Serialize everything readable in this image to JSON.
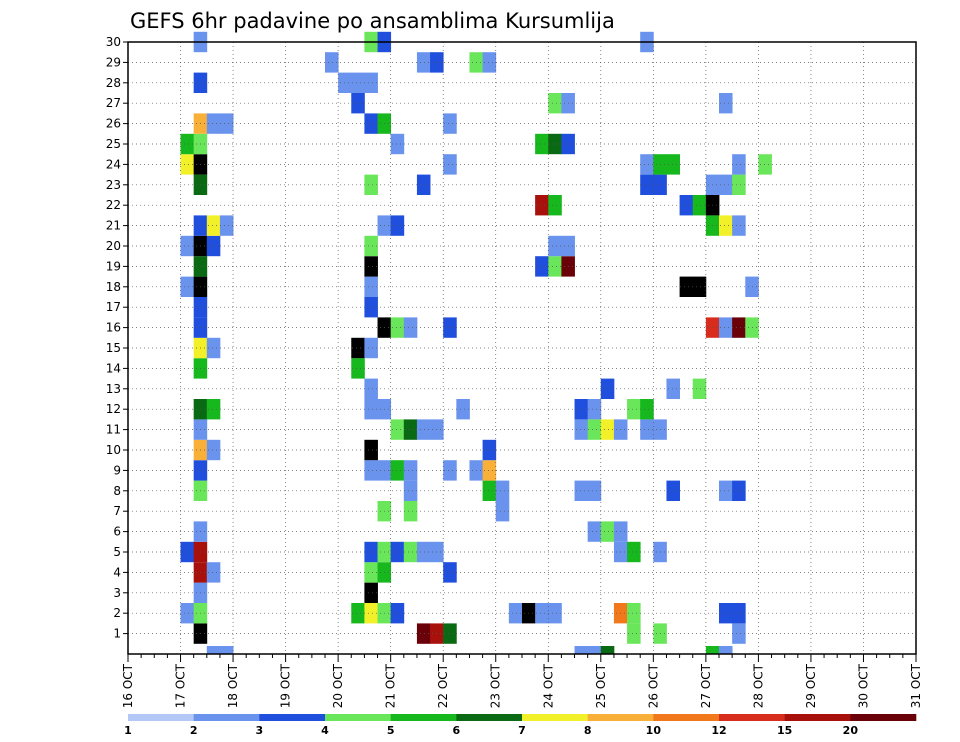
{
  "chart_data": {
    "type": "heatmap",
    "title": "GEFS 6hr padavine po ansamblima Kursumlija",
    "x_tick_labels": [
      "16 OCT",
      "17 OCT",
      "18 OCT",
      "19 OCT",
      "20 OCT",
      "21 OCT",
      "22 OCT",
      "23 OCT",
      "24 OCT",
      "25 OCT",
      "26 OCT",
      "27 OCT",
      "28 OCT",
      "29 OCT",
      "30 OCT",
      "31 OCT"
    ],
    "y_tick_labels": [
      "1",
      "2",
      "3",
      "4",
      "5",
      "6",
      "7",
      "8",
      "9",
      "10",
      "11",
      "12",
      "13",
      "14",
      "15",
      "16",
      "17",
      "18",
      "19",
      "20",
      "21",
      "22",
      "23",
      "24",
      "25",
      "26",
      "27",
      "28",
      "29",
      "30"
    ],
    "xlim": [
      "16 OCT",
      "31 OCT"
    ],
    "ylim": [
      0,
      30
    ],
    "grid": true,
    "step_hours": 6,
    "legend": {
      "placement": "bottom",
      "labels": [
        "1",
        "2",
        "3",
        "4",
        "5",
        "6",
        "7",
        "8",
        "10",
        "12",
        "15",
        "20"
      ],
      "colors": [
        "#b4c8f8",
        "#6a93ee",
        "#1f4fdc",
        "#6ae65a",
        "#16b81e",
        "#0a6a14",
        "#f2f028",
        "#f8b038",
        "#f2781c",
        "#d82c1c",
        "#a8100c",
        "#6a0008"
      ]
    },
    "cells": [
      [
        1,
        5,
        13
      ],
      [
        1,
        22,
        11
      ],
      [
        1,
        23,
        10
      ],
      [
        1,
        24,
        5
      ],
      [
        1,
        38,
        3
      ],
      [
        1,
        40,
        3
      ],
      [
        1,
        46,
        1
      ],
      [
        2,
        4,
        1
      ],
      [
        2,
        5,
        3
      ],
      [
        2,
        17,
        4
      ],
      [
        2,
        18,
        6
      ],
      [
        2,
        19,
        3
      ],
      [
        2,
        20,
        2
      ],
      [
        2,
        29,
        1
      ],
      [
        2,
        30,
        12
      ],
      [
        2,
        31,
        1
      ],
      [
        2,
        32,
        1
      ],
      [
        2,
        37,
        8
      ],
      [
        2,
        38,
        3
      ],
      [
        2,
        45,
        2
      ],
      [
        2,
        46,
        2
      ],
      [
        3,
        5,
        1
      ],
      [
        3,
        18,
        13
      ],
      [
        4,
        5,
        10
      ],
      [
        4,
        6,
        1
      ],
      [
        4,
        18,
        3
      ],
      [
        4,
        19,
        4
      ],
      [
        4,
        24,
        2
      ],
      [
        5,
        4,
        2
      ],
      [
        5,
        5,
        10
      ],
      [
        5,
        18,
        2
      ],
      [
        5,
        19,
        3
      ],
      [
        5,
        20,
        2
      ],
      [
        5,
        21,
        3
      ],
      [
        5,
        22,
        1
      ],
      [
        5,
        23,
        1
      ],
      [
        5,
        37,
        1
      ],
      [
        5,
        38,
        4
      ],
      [
        5,
        40,
        1
      ],
      [
        6,
        5,
        1
      ],
      [
        6,
        35,
        1
      ],
      [
        6,
        36,
        3
      ],
      [
        6,
        37,
        1
      ],
      [
        7,
        19,
        3
      ],
      [
        7,
        21,
        3
      ],
      [
        7,
        28,
        1
      ],
      [
        8,
        5,
        3
      ],
      [
        8,
        21,
        1
      ],
      [
        8,
        27,
        4
      ],
      [
        8,
        28,
        1
      ],
      [
        8,
        34,
        1
      ],
      [
        8,
        35,
        1
      ],
      [
        8,
        41,
        2
      ],
      [
        8,
        45,
        1
      ],
      [
        8,
        46,
        2
      ],
      [
        9,
        5,
        2
      ],
      [
        9,
        18,
        1
      ],
      [
        9,
        19,
        1
      ],
      [
        9,
        20,
        4
      ],
      [
        9,
        21,
        1
      ],
      [
        9,
        24,
        1
      ],
      [
        9,
        26,
        1
      ],
      [
        9,
        27,
        7
      ],
      [
        10,
        5,
        7
      ],
      [
        10,
        6,
        1
      ],
      [
        10,
        18,
        15
      ],
      [
        10,
        27,
        2
      ],
      [
        11,
        5,
        1
      ],
      [
        11,
        20,
        3
      ],
      [
        11,
        21,
        5
      ],
      [
        11,
        22,
        1
      ],
      [
        11,
        23,
        1
      ],
      [
        11,
        34,
        1
      ],
      [
        11,
        35,
        3
      ],
      [
        11,
        36,
        6
      ],
      [
        11,
        37,
        1
      ],
      [
        11,
        39,
        1
      ],
      [
        11,
        40,
        1
      ],
      [
        12,
        5,
        5
      ],
      [
        12,
        6,
        4
      ],
      [
        12,
        18,
        1
      ],
      [
        12,
        19,
        1
      ],
      [
        12,
        25,
        1
      ],
      [
        12,
        34,
        2
      ],
      [
        12,
        35,
        1
      ],
      [
        12,
        38,
        3
      ],
      [
        12,
        39,
        4
      ],
      [
        13,
        18,
        1
      ],
      [
        13,
        36,
        2
      ],
      [
        13,
        41,
        1
      ],
      [
        13,
        43,
        3
      ],
      [
        14,
        17,
        4
      ],
      [
        14,
        5,
        4
      ],
      [
        15,
        17,
        13
      ],
      [
        15,
        18,
        1
      ],
      [
        15,
        5,
        6
      ],
      [
        15,
        6,
        1
      ],
      [
        16,
        5,
        2
      ],
      [
        16,
        19,
        15
      ],
      [
        16,
        20,
        3
      ],
      [
        16,
        21,
        1
      ],
      [
        16,
        24,
        2
      ],
      [
        16,
        44,
        9
      ],
      [
        16,
        45,
        1
      ],
      [
        16,
        46,
        11
      ],
      [
        16,
        47,
        3
      ],
      [
        17,
        5,
        2
      ],
      [
        17,
        18,
        2
      ],
      [
        18,
        4,
        1
      ],
      [
        18,
        5,
        13
      ],
      [
        18,
        18,
        1
      ],
      [
        18,
        42,
        13
      ],
      [
        18,
        43,
        15
      ],
      [
        18,
        47,
        1
      ],
      [
        19,
        5,
        5
      ],
      [
        19,
        18,
        15
      ],
      [
        19,
        31,
        2
      ],
      [
        19,
        32,
        3
      ],
      [
        19,
        33,
        11
      ],
      [
        20,
        4,
        1
      ],
      [
        20,
        5,
        13
      ],
      [
        20,
        6,
        2
      ],
      [
        20,
        18,
        3
      ],
      [
        20,
        32,
        1
      ],
      [
        20,
        33,
        1
      ],
      [
        21,
        5,
        2
      ],
      [
        21,
        6,
        6
      ],
      [
        21,
        7,
        1
      ],
      [
        21,
        19,
        1
      ],
      [
        21,
        20,
        2
      ],
      [
        21,
        44,
        4
      ],
      [
        21,
        45,
        6
      ],
      [
        21,
        46,
        1
      ],
      [
        22,
        31,
        10
      ],
      [
        22,
        32,
        4
      ],
      [
        22,
        42,
        2
      ],
      [
        22,
        43,
        4
      ],
      [
        22,
        44,
        13
      ],
      [
        23,
        5,
        5
      ],
      [
        23,
        18,
        3
      ],
      [
        23,
        22,
        2
      ],
      [
        23,
        39,
        2
      ],
      [
        23,
        40,
        2
      ],
      [
        23,
        44,
        1
      ],
      [
        23,
        45,
        1
      ],
      [
        23,
        46,
        3
      ],
      [
        24,
        4,
        6
      ],
      [
        24,
        5,
        15
      ],
      [
        24,
        24,
        1
      ],
      [
        24,
        39,
        1
      ],
      [
        24,
        40,
        4
      ],
      [
        24,
        41,
        4
      ],
      [
        24,
        46,
        1
      ],
      [
        24,
        48,
        3
      ],
      [
        25,
        4,
        4
      ],
      [
        25,
        5,
        3
      ],
      [
        25,
        20,
        1
      ],
      [
        25,
        31,
        4
      ],
      [
        25,
        32,
        5
      ],
      [
        25,
        33,
        2
      ],
      [
        26,
        5,
        7
      ],
      [
        26,
        6,
        1
      ],
      [
        26,
        7,
        1
      ],
      [
        26,
        18,
        2
      ],
      [
        26,
        19,
        4
      ],
      [
        26,
        24,
        1
      ],
      [
        27,
        17,
        2
      ],
      [
        27,
        32,
        3
      ],
      [
        27,
        33,
        1
      ],
      [
        27,
        45,
        1
      ],
      [
        28,
        5,
        2
      ],
      [
        28,
        16,
        1
      ],
      [
        28,
        17,
        1
      ],
      [
        28,
        18,
        1
      ],
      [
        29,
        15,
        1
      ],
      [
        29,
        22,
        1
      ],
      [
        29,
        23,
        2
      ],
      [
        29,
        26,
        3
      ],
      [
        29,
        27,
        1
      ],
      [
        30,
        5,
        1
      ],
      [
        30,
        18,
        3
      ],
      [
        30,
        19,
        2
      ],
      [
        30,
        39,
        1
      ],
      [
        0,
        6,
        1
      ],
      [
        0,
        7,
        1
      ],
      [
        0,
        34,
        1
      ],
      [
        0,
        35,
        1
      ],
      [
        0,
        36,
        5
      ],
      [
        0,
        44,
        4
      ],
      [
        0,
        45,
        1
      ]
    ]
  }
}
